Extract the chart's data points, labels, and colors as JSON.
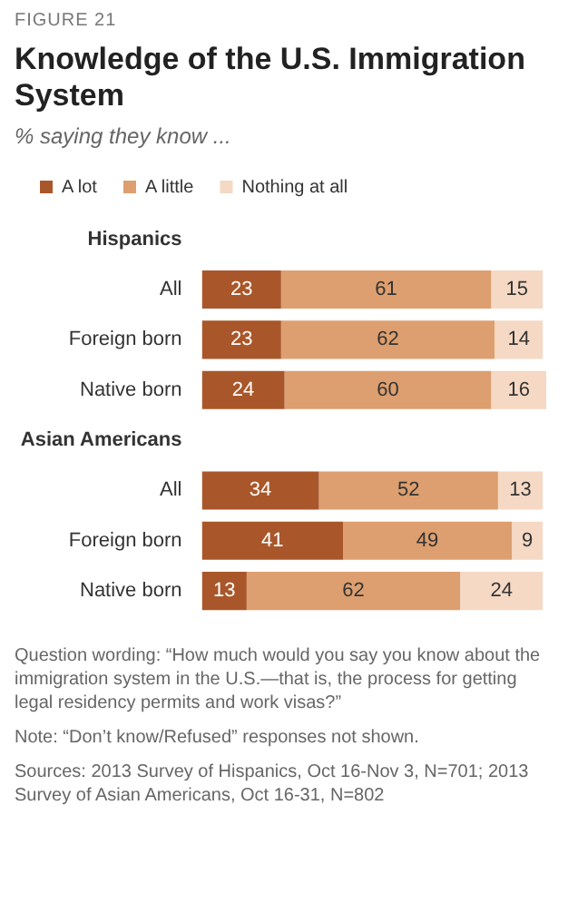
{
  "chart_data": {
    "type": "bar",
    "orientation": "horizontal",
    "stacked": true,
    "title": "Knowledge of the U.S. Immigration System",
    "subtitle": "% saying they know ...",
    "categories": [
      "Hispanics",
      "All",
      "Foreign born",
      "Native born",
      "Asian Americans",
      "All",
      "Foreign born",
      "Native born"
    ],
    "series": [
      {
        "name": "A lot",
        "color": "#a9572a",
        "values": [
          null,
          23,
          23,
          24,
          null,
          34,
          41,
          13
        ]
      },
      {
        "name": "A little",
        "color": "#dd9f6f",
        "values": [
          null,
          61,
          62,
          60,
          null,
          52,
          49,
          62
        ]
      },
      {
        "name": "Nothing at all",
        "color": "#f5d9c4",
        "values": [
          null,
          15,
          14,
          16,
          null,
          13,
          9,
          24
        ]
      }
    ],
    "data_labels": true,
    "legend": "top",
    "annotations": [
      "FIGURE 21",
      "Question wording: “How much would you say you know about the immigration system in the U.S.—that is, the process for getting legal residency permits and work visas?”",
      "Note: “Don’t know/Refused” responses not shown.",
      "Sources: 2013 Survey of Hispanics, Oct 16-Nov 3, N=701; 2013 Survey of Asian Americans, Oct 16-31, N=802"
    ]
  }
}
